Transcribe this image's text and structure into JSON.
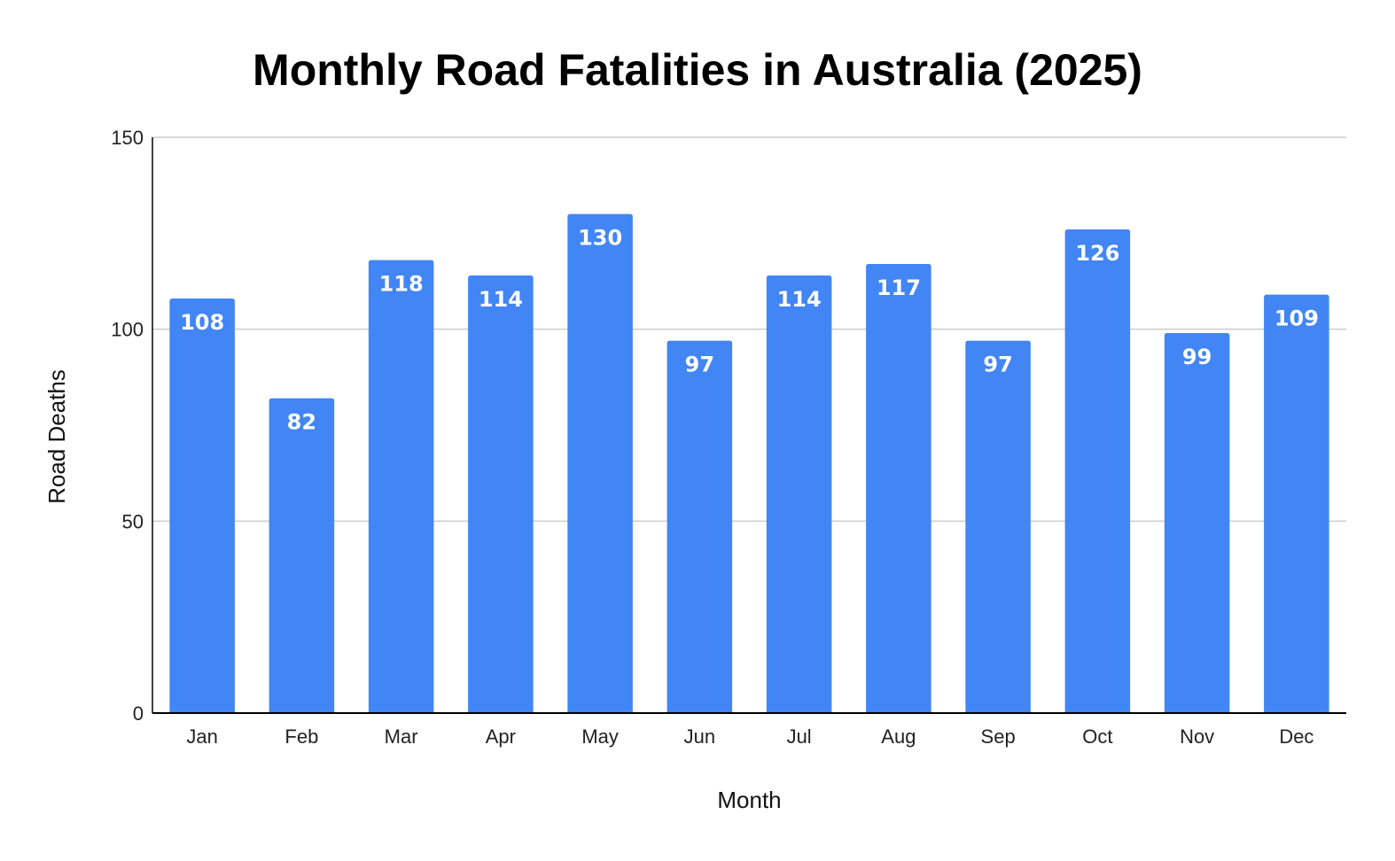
{
  "chart_data": {
    "type": "bar",
    "title": "Monthly Road Fatalities in Australia (2025)",
    "xlabel": "Month",
    "ylabel": "Road Deaths",
    "categories": [
      "Jan",
      "Feb",
      "Mar",
      "Apr",
      "May",
      "Jun",
      "Jul",
      "Aug",
      "Sep",
      "Oct",
      "Nov",
      "Dec"
    ],
    "values": [
      108,
      82,
      118,
      114,
      130,
      97,
      114,
      117,
      97,
      126,
      99,
      109
    ],
    "ylim": [
      0,
      150
    ],
    "yticks": [
      0,
      50,
      100,
      150
    ],
    "grid": true,
    "legend": "none",
    "data_labels": true,
    "bar_color": "#4285f4",
    "label_color": "#ffffff",
    "grid_color": "#cccccc",
    "axis_color": "#000000"
  }
}
